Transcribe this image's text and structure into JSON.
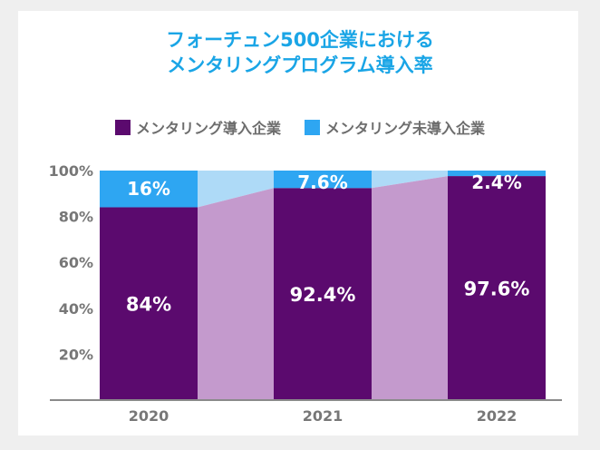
{
  "title": {
    "line1": "フォーチュン500企業における",
    "line2": "メンタリングプログラム導入率"
  },
  "colors": {
    "adopted": "#5b0a6e",
    "not_adopted": "#2ea6f2",
    "band_adopted": "#c49acd",
    "band_not_adopted": "#aedaf7",
    "axis_text": "#777777",
    "title": "#1aa5e6"
  },
  "chart_data": {
    "type": "bar",
    "stacked": true,
    "categories": [
      "2020",
      "2021",
      "2022"
    ],
    "series": [
      {
        "name": "メンタリング導入企業",
        "values": [
          84,
          92.4,
          97.6
        ],
        "labels": [
          "84%",
          "92.4%",
          "97.6%"
        ]
      },
      {
        "name": "メンタリング未導入企業",
        "values": [
          16,
          7.6,
          2.4
        ],
        "labels": [
          "16%",
          "7.6%",
          "2.4%"
        ]
      }
    ],
    "yticks": [
      "20%",
      "40%",
      "60%",
      "80%",
      "100%"
    ],
    "ylim": [
      0,
      100
    ],
    "legend_position": "top"
  }
}
